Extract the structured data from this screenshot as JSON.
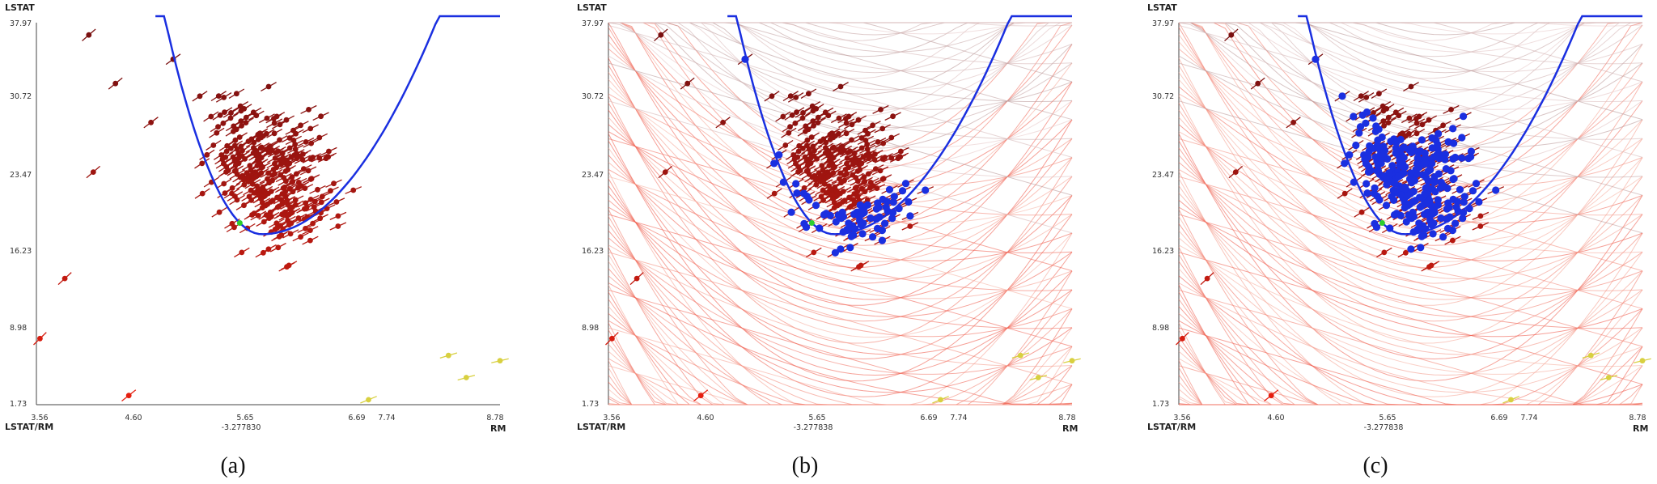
{
  "chart_data": [
    {
      "type": "scatter",
      "panel": "a",
      "caption": "(a)",
      "x_label_left": "LSTAT/RM",
      "x_label_right": "RM",
      "y_label": "LSTAT",
      "slope_label": "-3.277830",
      "x_ticks": [
        "3.56",
        "4.60",
        "5.65",
        "6.69",
        "7.74",
        "8.78"
      ],
      "y_ticks": [
        "37.97",
        "30.72",
        "23.47",
        "16.23",
        "8.98",
        "1.73"
      ],
      "xlim": [
        3.56,
        8.78
      ],
      "ylim": [
        1.73,
        37.97
      ],
      "show_background_curves": false,
      "blue_points": "none",
      "colors": {
        "curve": "#1a2fe0",
        "highlight": "#2ecc2e",
        "low": "#7a1010",
        "mid": "#e51f10",
        "high": "#d8d040"
      }
    },
    {
      "type": "scatter",
      "panel": "b",
      "caption": "(b)",
      "x_label_left": "LSTAT/RM",
      "x_label_right": "RM",
      "y_label": "LSTAT",
      "slope_label": "-3.277838",
      "x_ticks": [
        "3.56",
        "4.60",
        "5.65",
        "6.69",
        "7.74",
        "8.78"
      ],
      "y_ticks": [
        "37.97",
        "30.72",
        "23.47",
        "16.23",
        "8.98",
        "1.73"
      ],
      "xlim": [
        3.56,
        8.78
      ],
      "ylim": [
        1.73,
        37.97
      ],
      "show_background_curves": true,
      "blue_points": "along-curve",
      "colors": {
        "curve": "#1a2fe0",
        "highlight": "#2ecc2e",
        "low": "#7a1010",
        "mid": "#e51f10",
        "high": "#d8d040"
      }
    },
    {
      "type": "scatter",
      "panel": "c",
      "caption": "(c)",
      "x_label_left": "LSTAT/RM",
      "x_label_right": "RM",
      "y_label": "LSTAT",
      "slope_label": "-3.277838",
      "x_ticks": [
        "3.56",
        "4.60",
        "5.65",
        "6.69",
        "7.74",
        "8.78"
      ],
      "y_ticks": [
        "37.97",
        "30.72",
        "23.47",
        "16.23",
        "8.98",
        "1.73"
      ],
      "xlim": [
        3.56,
        8.78
      ],
      "ylim": [
        1.73,
        37.97
      ],
      "show_background_curves": true,
      "blue_points": "above-curve",
      "colors": {
        "curve": "#1a2fe0",
        "highlight": "#2ecc2e",
        "low": "#7a1010",
        "mid": "#e51f10",
        "high": "#d8d040"
      }
    }
  ]
}
